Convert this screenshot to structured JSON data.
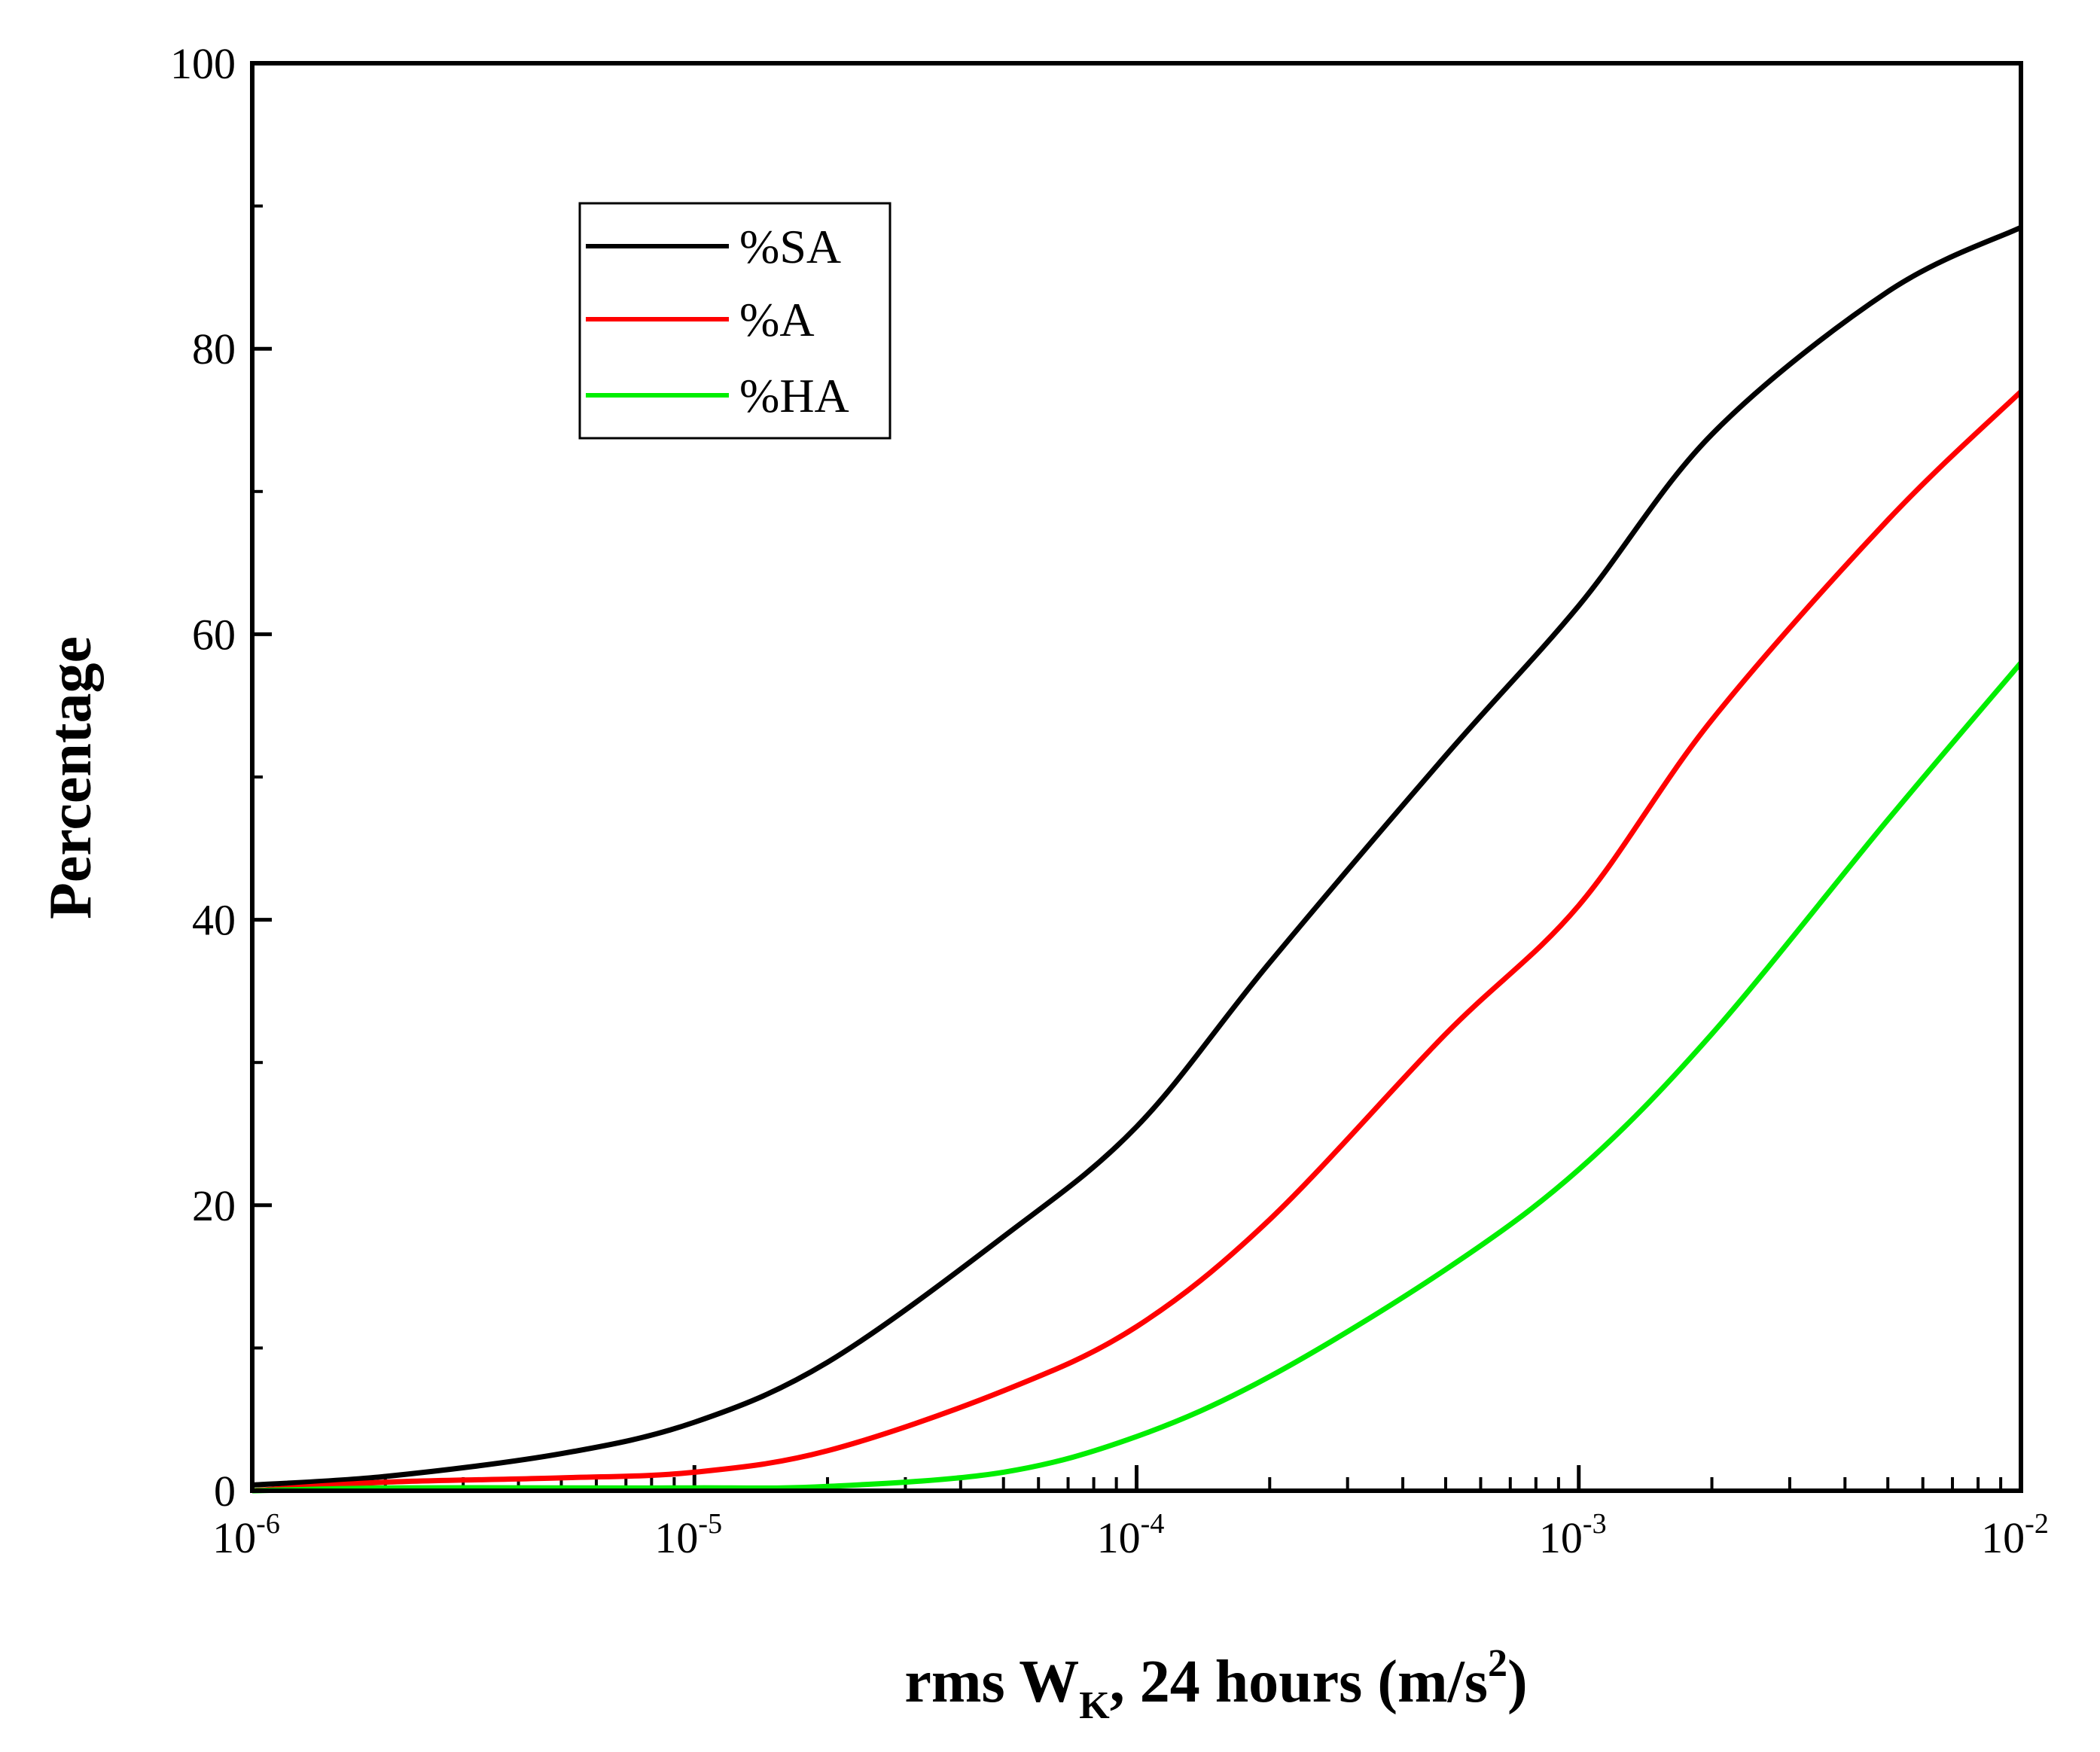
{
  "chart_data": {
    "type": "line",
    "title": "",
    "xlabel": {
      "main": "rms W",
      "subscript": "K",
      "rest": ", 24 hours (m/s",
      "superscript": "2",
      "end": ")"
    },
    "ylabel": "Percentage",
    "xscale": "log",
    "xlim": [
      1e-06,
      0.01
    ],
    "ylim": [
      0,
      100
    ],
    "x_ticks": [
      {
        "base": "10",
        "exp": "-6",
        "value": 1e-06
      },
      {
        "base": "10",
        "exp": "-5",
        "value": 1e-05
      },
      {
        "base": "10",
        "exp": "-4",
        "value": 0.0001
      },
      {
        "base": "10",
        "exp": "-3",
        "value": 0.001
      },
      {
        "base": "10",
        "exp": "-2",
        "value": 0.01
      }
    ],
    "y_ticks": [
      "0",
      "20",
      "40",
      "60",
      "80",
      "100"
    ],
    "legend_position": "upper-left-inside",
    "x": [
      1e-06,
      2e-06,
      5e-06,
      1e-05,
      2e-05,
      5e-05,
      0.0001,
      0.0002,
      0.0005,
      0.001,
      0.002,
      0.005,
      0.01
    ],
    "series": [
      {
        "name": "%SA",
        "color": "#000000",
        "values": [
          0.4,
          1.0,
          2.6,
          4.8,
          9.0,
          17.8,
          25.5,
          37.0,
          51.5,
          62.0,
          74.0,
          84.0,
          88.5
        ]
      },
      {
        "name": "%A",
        "color": "#ff0000",
        "values": [
          0.0,
          0.6,
          0.9,
          1.3,
          2.8,
          7.0,
          11.5,
          19.0,
          32.0,
          41.0,
          54.0,
          68.0,
          77.0
        ]
      },
      {
        "name": "%HA",
        "color": "#00ee00",
        "values": [
          0.0,
          0.2,
          0.2,
          0.2,
          0.3,
          1.3,
          3.8,
          8.0,
          15.5,
          22.5,
          32.0,
          47.0,
          58.0
        ]
      }
    ]
  }
}
